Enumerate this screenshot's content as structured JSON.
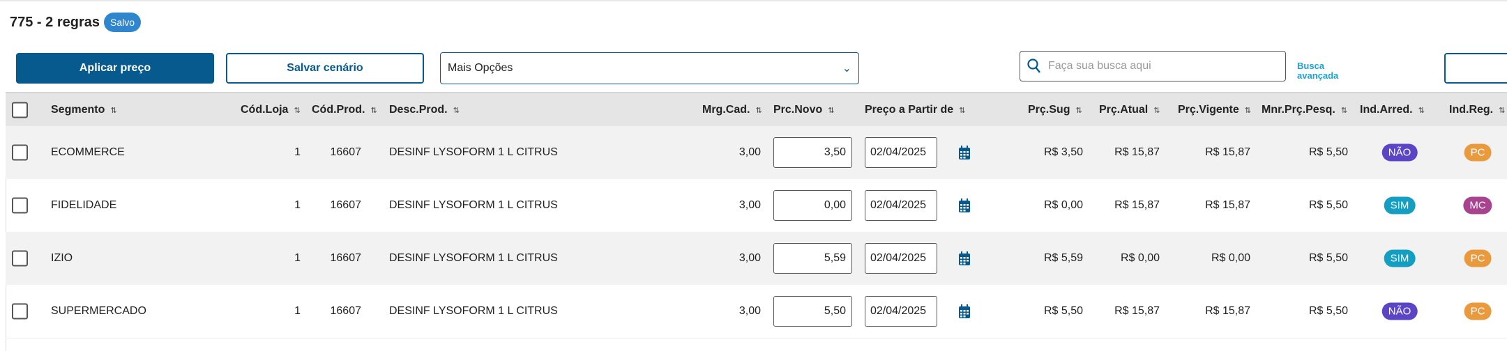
{
  "header": {
    "title": "775 - 2 regras",
    "status_badge": "Salvo"
  },
  "toolbar": {
    "apply_label": "Aplicar preço",
    "save_label": "Salvar cenário",
    "more_options": "Mais Opções",
    "search_placeholder": "Faça sua busca aqui",
    "advanced_search": "Busca avançada"
  },
  "columns": {
    "segmento": "Segmento",
    "cod_loja": "Cód.Loja",
    "cod_prod": "Cód.Prod.",
    "desc_prod": "Desc.Prod.",
    "mrg_cad": "Mrg.Cad.",
    "prc_novo": "Prc.Novo",
    "preco_partir": "Preço a Partir de",
    "prc_sug": "Prç.Sug",
    "prc_atual": "Prç.Atual",
    "prc_vigente": "Prç.Vigente",
    "mnr_prc": "Mnr.Prç.Pesq.",
    "ind_arred": "Ind.Arred.",
    "ind_reg": "Ind.Reg."
  },
  "rows": [
    {
      "segmento": "ECOMMERCE",
      "cod_loja": "1",
      "cod_prod": "16607",
      "desc": "DESINF LYSOFORM 1 L CITRUS",
      "mrg": "3,00",
      "prc_novo": "3,50",
      "data": "02/04/2025",
      "sug": "R$ 3,50",
      "atual": "R$ 15,87",
      "vigente": "R$ 15,87",
      "mnr": "R$ 5,50",
      "arred": "NÃO",
      "arred_color": "#5b45c6",
      "reg": "PC",
      "reg_color": "#e99a3c"
    },
    {
      "segmento": "FIDELIDADE",
      "cod_loja": "1",
      "cod_prod": "16607",
      "desc": "DESINF LYSOFORM 1 L CITRUS",
      "mrg": "3,00",
      "prc_novo": "0,00",
      "data": "02/04/2025",
      "sug": "R$ 0,00",
      "atual": "R$ 15,87",
      "vigente": "R$ 15,87",
      "mnr": "R$ 5,50",
      "arred": "SIM",
      "arred_color": "#149ec2",
      "reg": "MC",
      "reg_color": "#a8438f"
    },
    {
      "segmento": "IZIO",
      "cod_loja": "1",
      "cod_prod": "16607",
      "desc": "DESINF LYSOFORM 1 L CITRUS",
      "mrg": "3,00",
      "prc_novo": "5,59",
      "data": "02/04/2025",
      "sug": "R$ 5,59",
      "atual": "R$ 0,00",
      "vigente": "R$ 0,00",
      "mnr": "R$ 5,50",
      "arred": "SIM",
      "arred_color": "#149ec2",
      "reg": "PC",
      "reg_color": "#e99a3c"
    },
    {
      "segmento": "SUPERMERCADO",
      "cod_loja": "1",
      "cod_prod": "16607",
      "desc": "DESINF LYSOFORM 1 L CITRUS",
      "mrg": "3,00",
      "prc_novo": "5,50",
      "data": "02/04/2025",
      "sug": "R$ 5,50",
      "atual": "R$ 15,87",
      "vigente": "R$ 15,87",
      "mnr": "R$ 5,50",
      "arred": "NÃO",
      "arred_color": "#5b45c6",
      "reg": "PC",
      "reg_color": "#e99a3c"
    }
  ]
}
